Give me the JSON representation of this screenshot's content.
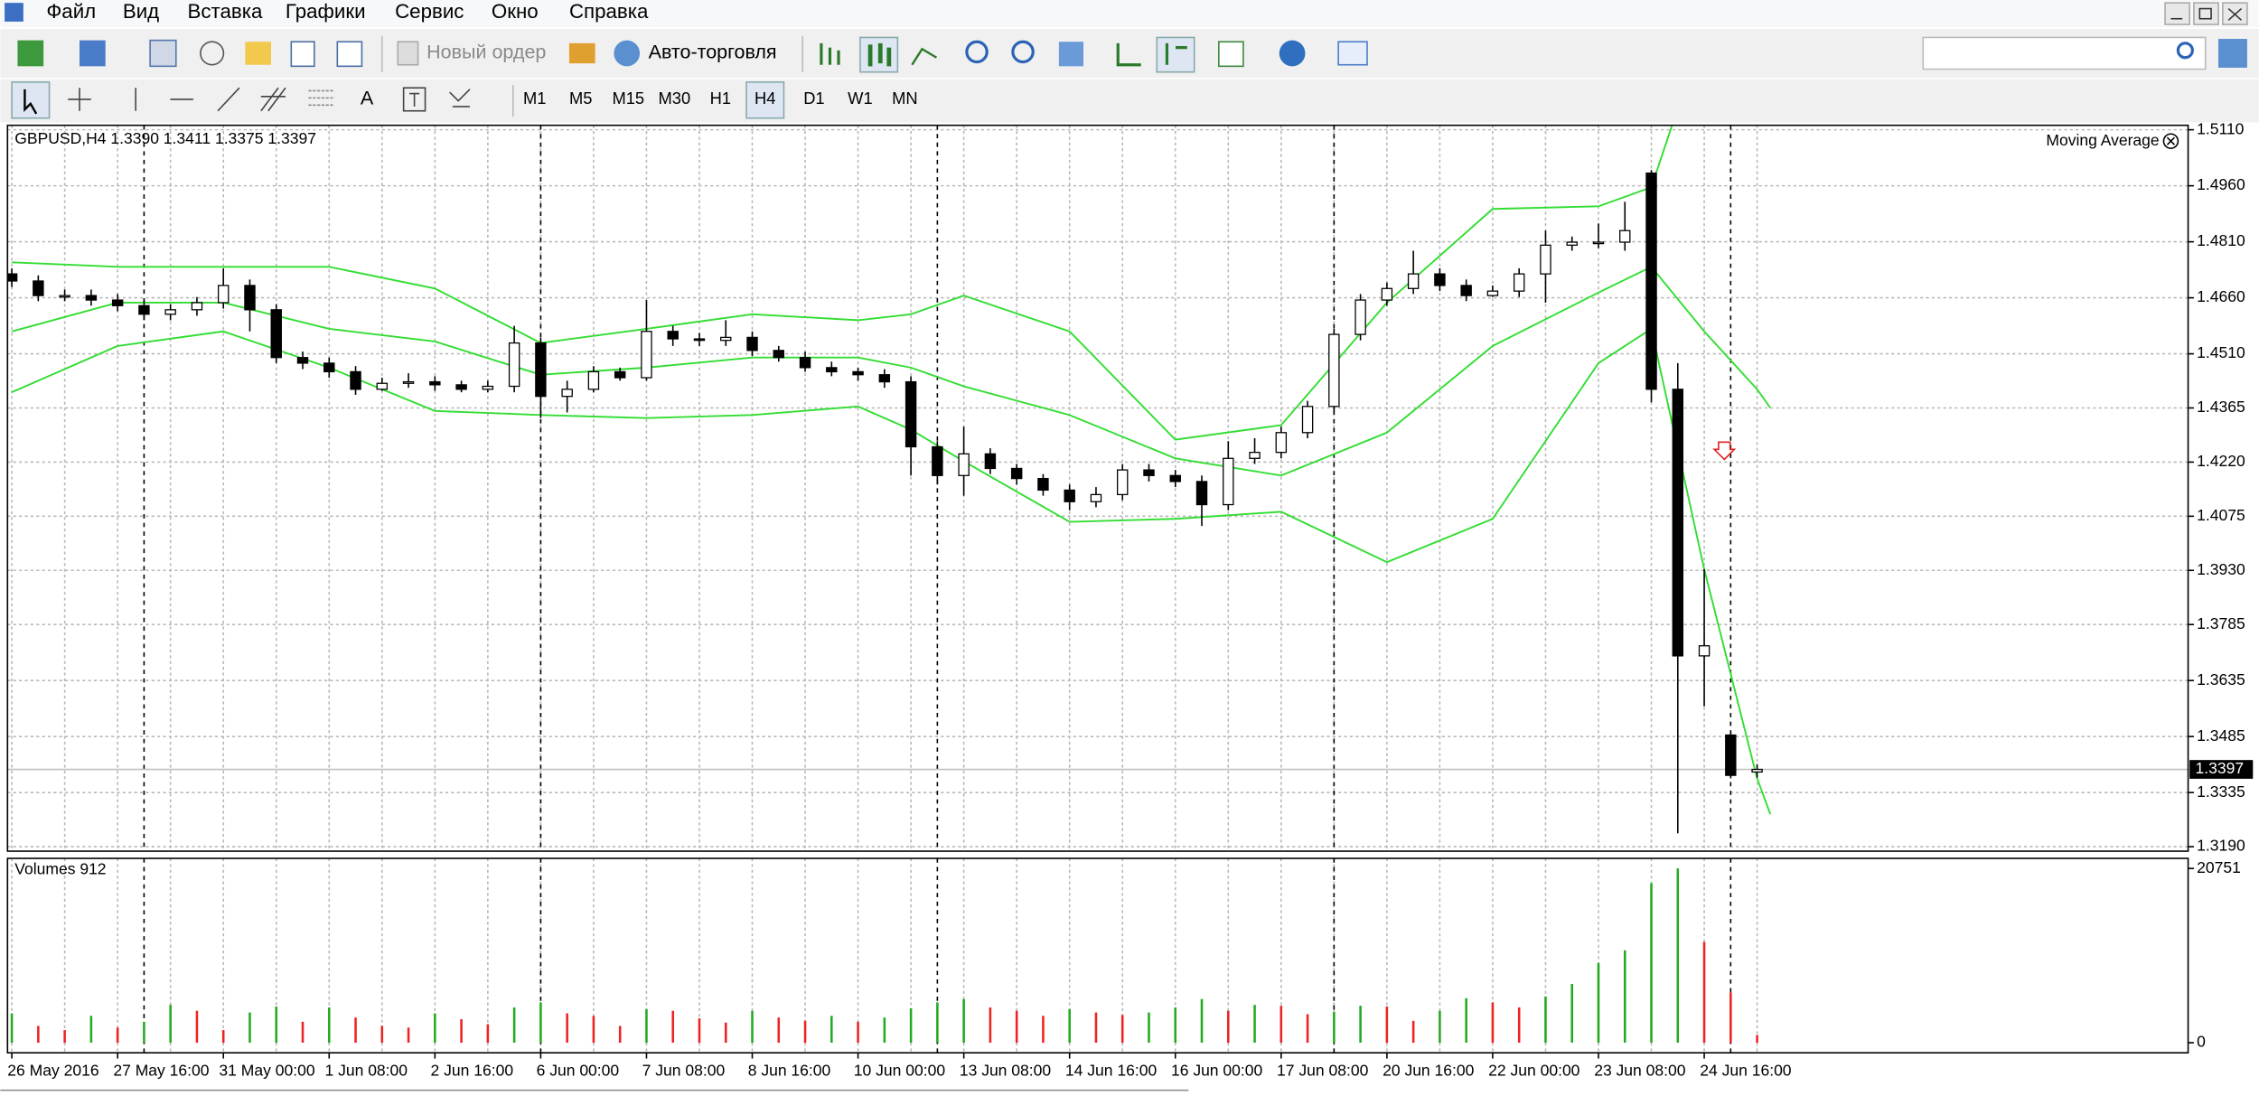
{
  "menu": [
    "Файл",
    "Вид",
    "Вставка",
    "Графики",
    "Сервис",
    "Окно",
    "Справка"
  ],
  "toolbar": {
    "new_order": "Новый ордер",
    "auto_trading": "Авто-торговля",
    "text_tool": "A"
  },
  "timeframes": [
    {
      "label": "M1"
    },
    {
      "label": "M5"
    },
    {
      "label": "M15"
    },
    {
      "label": "M30"
    },
    {
      "label": "H1"
    },
    {
      "label": "H4",
      "pressed": true
    },
    {
      "label": "D1"
    },
    {
      "label": "W1"
    },
    {
      "label": "MN"
    }
  ],
  "chart_data": [
    {
      "type": "candlestick",
      "title": "GBPUSD,H4  1.3390 1.3411 1.3375 1.3397",
      "indicator": "Moving Average",
      "categories": [
        "26 May 2016",
        null,
        null,
        null,
        "27 May 16:00",
        null,
        null,
        null,
        "31 May 00:00",
        null,
        null,
        null,
        "1 Jun 08:00",
        null,
        null,
        null,
        "2 Jun 16:00",
        null,
        null,
        null,
        "6 Jun 00:00",
        null,
        null,
        null,
        "7 Jun 08:00",
        null,
        null,
        null,
        "8 Jun 16:00",
        null,
        null,
        null,
        "10 Jun 00:00",
        null,
        null,
        null,
        "13 Jun 08:00",
        null,
        null,
        null,
        "14 Jun 16:00",
        null,
        null,
        null,
        "16 Jun 00:00",
        null,
        null,
        null,
        "17 Jun 08:00",
        null,
        null,
        null,
        "20 Jun 16:00",
        null,
        null,
        null,
        "22 Jun 00:00",
        null,
        null,
        null,
        "23 Jun 08:00",
        null,
        null,
        null,
        "24 Jun 16:00",
        null,
        null
      ],
      "open": [
        1.4724,
        1.4705,
        1.4666,
        1.4666,
        1.4654,
        1.4639,
        1.4616,
        1.4628,
        1.4647,
        1.4693,
        1.4628,
        1.45,
        1.4485,
        1.4462,
        1.4415,
        1.4431,
        1.4435,
        1.4427,
        1.4415,
        1.4423,
        1.4539,
        1.4396,
        1.4415,
        1.4462,
        1.4446,
        1.457,
        1.455,
        1.4546,
        1.4554,
        1.4519,
        1.45,
        1.4473,
        1.4462,
        1.4454,
        1.4435,
        1.4261,
        1.4184,
        1.4242,
        1.4203,
        1.4176,
        1.4145,
        1.4114,
        1.4133,
        1.4199,
        1.4184,
        1.4168,
        1.4106,
        1.423,
        1.4246,
        1.4299,
        1.4369,
        1.4562,
        1.4654,
        1.4685,
        1.4724,
        1.4693,
        1.4666,
        1.4678,
        1.4724,
        1.4801,
        1.4809,
        1.4809,
        1.4994,
        1.4415,
        1.3701,
        1.3489,
        1.339
      ],
      "high": [
        1.4739,
        1.472,
        1.4682,
        1.4682,
        1.467,
        1.4654,
        1.4643,
        1.4662,
        1.4739,
        1.4709,
        1.4643,
        1.4516,
        1.45,
        1.4477,
        1.4446,
        1.4458,
        1.445,
        1.4438,
        1.4438,
        1.4585,
        1.4554,
        1.4438,
        1.4477,
        1.4473,
        1.4654,
        1.4585,
        1.4566,
        1.46,
        1.457,
        1.4531,
        1.4516,
        1.4489,
        1.4473,
        1.4469,
        1.445,
        1.4276,
        1.4315,
        1.4257,
        1.4215,
        1.4188,
        1.416,
        1.4153,
        1.4215,
        1.4215,
        1.4199,
        1.4184,
        1.4276,
        1.4284,
        1.4315,
        1.4384,
        1.4577,
        1.467,
        1.4701,
        1.4786,
        1.4739,
        1.4709,
        1.4693,
        1.4739,
        1.484,
        1.4824,
        1.4859,
        1.4917,
        1.5002,
        1.4485,
        1.3933,
        1.3497,
        1.3411
      ],
      "low": [
        1.4689,
        1.4651,
        1.4651,
        1.4639,
        1.4624,
        1.46,
        1.46,
        1.4612,
        1.4631,
        1.457,
        1.4485,
        1.4469,
        1.4446,
        1.44,
        1.4411,
        1.4419,
        1.4411,
        1.4407,
        1.4407,
        1.4407,
        1.4338,
        1.4353,
        1.4407,
        1.4438,
        1.4438,
        1.4531,
        1.4531,
        1.4531,
        1.4504,
        1.4489,
        1.4462,
        1.445,
        1.4438,
        1.4419,
        1.4184,
        1.416,
        1.413,
        1.4188,
        1.416,
        1.413,
        1.4091,
        1.4099,
        1.4118,
        1.4168,
        1.4153,
        1.4049,
        1.4091,
        1.4215,
        1.423,
        1.4284,
        1.4353,
        1.4546,
        1.4639,
        1.467,
        1.4678,
        1.4651,
        1.4662,
        1.4662,
        1.4647,
        1.4786,
        1.4793,
        1.4786,
        1.438,
        1.3226,
        1.3566,
        1.3373,
        1.3375
      ],
      "close": [
        1.4705,
        1.4666,
        1.4666,
        1.4654,
        1.4639,
        1.4616,
        1.4628,
        1.4647,
        1.4693,
        1.4628,
        1.45,
        1.4485,
        1.4462,
        1.4415,
        1.4431,
        1.4435,
        1.4427,
        1.4415,
        1.4423,
        1.4539,
        1.4396,
        1.4415,
        1.4462,
        1.4446,
        1.457,
        1.455,
        1.4546,
        1.4554,
        1.4519,
        1.45,
        1.4473,
        1.4462,
        1.4454,
        1.4435,
        1.4261,
        1.4184,
        1.4242,
        1.4203,
        1.4176,
        1.4145,
        1.4114,
        1.4133,
        1.4199,
        1.4184,
        1.4168,
        1.4106,
        1.423,
        1.4246,
        1.4299,
        1.4369,
        1.4562,
        1.4654,
        1.4685,
        1.4724,
        1.4693,
        1.4666,
        1.4678,
        1.4724,
        1.4801,
        1.4809,
        1.4809,
        1.484,
        1.4415,
        1.3701,
        1.3728,
        1.3381,
        1.3397
      ],
      "bull_color": "#ffffff",
      "bear_color": "#000000",
      "bands_x": [
        0,
        4,
        8,
        12,
        16,
        20,
        24,
        28,
        32,
        34,
        36,
        40,
        44,
        48,
        52,
        56,
        60,
        62,
        64,
        66,
        66.5
      ],
      "bands": [
        {
          "color": "#33dd33",
          "values": [
            1.4755,
            1.4743,
            1.4743,
            1.4743,
            1.4685,
            1.4539,
            1.4577,
            1.4616,
            1.46,
            1.4616,
            1.4666,
            1.457,
            1.428,
            1.4319,
            1.4647,
            1.4898,
            1.4905,
            1.4956,
            1.538,
            1.5689,
            1.5766
          ]
        },
        {
          "color": "#33dd33",
          "values": [
            1.457,
            1.4647,
            1.4647,
            1.4577,
            1.4543,
            1.4454,
            1.4473,
            1.45,
            1.45,
            1.4473,
            1.4423,
            1.4346,
            1.423,
            1.4184,
            1.4299,
            1.4531,
            1.4674,
            1.4743,
            1.457,
            1.4415,
            1.4365
          ]
        },
        {
          "color": "#33dd33",
          "values": [
            1.4407,
            1.4531,
            1.457,
            1.4473,
            1.4357,
            1.4346,
            1.4338,
            1.4346,
            1.4369,
            1.4307,
            1.4222,
            1.406,
            1.4068,
            1.4087,
            1.3952,
            1.4068,
            1.4485,
            1.4577,
            1.3933,
            1.3373,
            1.3277
          ]
        }
      ],
      "current_price": 1.3397,
      "period_separators": [
        5,
        20,
        35,
        50,
        65
      ],
      "ylim": [
        1.3178,
        1.5122
      ],
      "yticks": [
        {
          "value": 1.511,
          "label": "1.5110"
        },
        {
          "value": 1.496,
          "label": "1.4960"
        },
        {
          "value": 1.481,
          "label": "1.4810"
        },
        {
          "value": 1.466,
          "label": "1.4660"
        },
        {
          "value": 1.451,
          "label": "1.4510"
        },
        1.4365,
        {
          "value": 1.422,
          "label": "1.4220"
        },
        1.4075,
        {
          "value": 1.393,
          "label": "1.3930"
        },
        1.3785,
        1.3635,
        1.3485,
        1.3335,
        {
          "value": 1.319,
          "label": "1.3190"
        }
      ],
      "grid": true
    },
    {
      "type": "bar",
      "title": "Volumes 912",
      "values": [
        3500,
        2000,
        1500,
        3200,
        1800,
        2500,
        4500,
        3800,
        1500,
        3600,
        4300,
        2500,
        4200,
        3000,
        2000,
        1800,
        3500,
        2800,
        2200,
        4200,
        4800,
        3500,
        3200,
        2000,
        4000,
        3800,
        2900,
        2400,
        3800,
        3000,
        2600,
        3200,
        2500,
        3000,
        4100,
        4800,
        5200,
        4200,
        3800,
        3200,
        4000,
        3600,
        3300,
        3600,
        4200,
        5200,
        3800,
        4500,
        4400,
        3400,
        3700,
        4400,
        4300,
        2600,
        3800,
        5300,
        4800,
        4200,
        5500,
        7000,
        9500,
        11000,
        19000,
        20751,
        12000,
        6000,
        912
      ],
      "up_color": "#22aa22",
      "down_color": "#ee2222",
      "ylim": [
        0,
        20751
      ],
      "yticks": [
        20751,
        0
      ]
    }
  ]
}
